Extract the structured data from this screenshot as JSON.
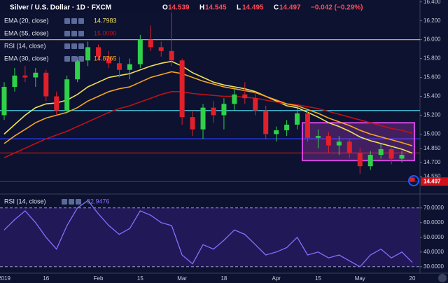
{
  "chart_data": {
    "type": "candlestick",
    "title": "Silver / U.S. Dollar · 1D · FXCM",
    "ohlc_labels": [
      "O",
      "H",
      "L",
      "C"
    ],
    "change_label": "−0.042 (−0.29%)",
    "categories": [
      "2019",
      null,
      null,
      null,
      "16",
      null,
      null,
      null,
      null,
      "Feb",
      null,
      null,
      null,
      "15",
      null,
      null,
      null,
      "Mar",
      null,
      null,
      null,
      "18",
      null,
      null,
      null,
      null,
      "Apr",
      null,
      null,
      null,
      "15",
      null,
      null,
      null,
      "May",
      null,
      null,
      null,
      null,
      "20"
    ],
    "open": [
      15.2,
      15.5,
      15.62,
      15.6,
      15.65,
      15.4,
      15.25,
      15.58,
      15.78,
      15.92,
      15.82,
      15.75,
      15.68,
      15.74,
      16.0,
      15.92,
      15.88,
      15.78,
      15.18,
      15.05,
      15.28,
      15.2,
      15.32,
      15.42,
      15.38,
      15.25,
      15.0,
      15.04,
      15.1,
      15.22,
      14.96,
      14.98,
      14.88,
      14.92,
      14.8,
      14.66,
      14.78,
      14.84,
      14.74,
      14.539
    ],
    "high": [
      15.55,
      15.7,
      15.72,
      15.7,
      15.68,
      15.45,
      15.62,
      15.82,
      15.98,
      15.95,
      15.88,
      15.82,
      15.8,
      16.05,
      16.15,
      15.98,
      16.38,
      15.8,
      15.25,
      15.32,
      15.35,
      15.38,
      15.48,
      15.55,
      15.45,
      15.3,
      15.08,
      15.15,
      15.3,
      15.25,
      15.05,
      15.02,
      14.98,
      14.95,
      14.85,
      14.82,
      14.9,
      14.86,
      14.82,
      14.545
    ],
    "low": [
      15.15,
      15.45,
      15.55,
      15.5,
      15.35,
      15.2,
      15.22,
      15.55,
      15.72,
      15.78,
      15.7,
      15.6,
      15.58,
      15.7,
      15.88,
      15.82,
      15.72,
      15.1,
      14.98,
      14.95,
      15.12,
      15.05,
      15.25,
      15.32,
      15.2,
      14.95,
      14.92,
      14.98,
      15.05,
      14.92,
      14.85,
      14.8,
      14.78,
      14.75,
      14.58,
      14.62,
      14.74,
      14.68,
      14.7,
      14.495
    ],
    "close": [
      15.5,
      15.62,
      15.6,
      15.65,
      15.4,
      15.25,
      15.58,
      15.78,
      15.92,
      15.82,
      15.75,
      15.68,
      15.74,
      16.0,
      15.92,
      15.88,
      15.78,
      15.18,
      15.05,
      15.28,
      15.2,
      15.32,
      15.42,
      15.38,
      15.25,
      15.0,
      15.04,
      15.1,
      15.22,
      14.96,
      14.98,
      14.88,
      14.92,
      14.8,
      14.66,
      14.78,
      14.84,
      14.74,
      14.78,
      14.497
    ],
    "up_color": "#2fd14a",
    "down_color": "#e0202a",
    "series": [
      {
        "name": "EMA (20, close)",
        "color": "#f2e05a",
        "last_label": "14.7983",
        "values": [
          15.0,
          15.1,
          15.2,
          15.28,
          15.32,
          15.33,
          15.36,
          15.42,
          15.5,
          15.55,
          15.6,
          15.62,
          15.64,
          15.68,
          15.72,
          15.75,
          15.77,
          15.72,
          15.65,
          15.6,
          15.55,
          15.52,
          15.5,
          15.48,
          15.45,
          15.4,
          15.35,
          15.3,
          15.28,
          15.23,
          15.18,
          15.12,
          15.08,
          15.03,
          14.97,
          14.93,
          14.9,
          14.87,
          14.84,
          14.7983
        ]
      },
      {
        "name": "EMA (55, close)",
        "color": "#c0101a",
        "last_label": "15.0090",
        "values": [
          14.75,
          14.8,
          14.85,
          14.9,
          14.95,
          14.99,
          15.03,
          15.08,
          15.13,
          15.18,
          15.23,
          15.27,
          15.3,
          15.34,
          15.38,
          15.42,
          15.45,
          15.45,
          15.43,
          15.42,
          15.41,
          15.4,
          15.4,
          15.39,
          15.38,
          15.36,
          15.34,
          15.32,
          15.31,
          15.29,
          15.27,
          15.24,
          15.21,
          15.18,
          15.15,
          15.12,
          15.09,
          15.06,
          15.04,
          15.009
        ]
      },
      {
        "name": "EMA (30, close)",
        "color": "#f5a623",
        "last_label": "14.8765",
        "values": [
          14.9,
          14.98,
          15.05,
          15.12,
          15.17,
          15.2,
          15.23,
          15.28,
          15.35,
          15.4,
          15.45,
          15.48,
          15.5,
          15.55,
          15.6,
          15.63,
          15.66,
          15.64,
          15.6,
          15.56,
          15.53,
          15.5,
          15.48,
          15.46,
          15.44,
          15.4,
          15.36,
          15.32,
          15.3,
          15.26,
          15.22,
          15.17,
          15.13,
          15.09,
          15.04,
          15.0,
          14.97,
          14.94,
          14.91,
          14.8765
        ]
      }
    ],
    "legend_extra": "RSI (14, close)",
    "hlines": [
      {
        "value": 16.0,
        "color": "#e8a23a"
      },
      {
        "value": 15.25,
        "color": "#46d0e8"
      },
      {
        "value": 14.95,
        "color": "#2a40ff"
      },
      {
        "value": 14.8,
        "color": "#b01a1a"
      },
      {
        "value": 14.497,
        "color": "#a01010"
      }
    ],
    "box": {
      "from": 29,
      "to": 39,
      "top": 15.12,
      "bottom": 14.72,
      "color": "#d046e0"
    },
    "ylim": [
      14.38,
      16.42
    ],
    "yticks": [
      {
        "value": 16.4,
        "label": "16.400"
      },
      {
        "value": 16.2,
        "label": "16.200"
      },
      {
        "value": 16.0,
        "label": "16.000"
      },
      {
        "value": 15.8,
        "label": "15.800"
      },
      {
        "value": 15.6,
        "label": "15.600"
      },
      {
        "value": 15.4,
        "label": "15.400"
      },
      {
        "value": 15.2,
        "label": "15.200"
      },
      {
        "value": 15.0,
        "label": "15.000"
      },
      {
        "value": 14.85,
        "label": "14.850"
      },
      {
        "value": 14.7,
        "label": "14.700"
      },
      {
        "value": 14.55,
        "label": "14.550"
      }
    ],
    "last_price_label": "14.497",
    "rsi": {
      "name": "RSI (14, close)",
      "color": "#8a6cff",
      "last_label": "32.9476",
      "values": [
        55,
        62,
        68,
        60,
        50,
        42,
        58,
        70,
        75,
        66,
        58,
        52,
        56,
        68,
        65,
        60,
        58,
        38,
        32,
        45,
        42,
        48,
        55,
        52,
        45,
        38,
        40,
        43,
        50,
        38,
        40,
        36,
        38,
        34,
        30,
        38,
        42,
        36,
        40,
        32.9476
      ],
      "ylim": [
        28,
        78
      ],
      "yticks": [
        {
          "value": 70,
          "label": "70.0000"
        },
        {
          "value": 60,
          "label": "60.0000"
        },
        {
          "value": 50,
          "label": "50.0000"
        },
        {
          "value": 40,
          "label": "40.0000"
        },
        {
          "value": 30,
          "label": "30.0000"
        }
      ],
      "band": [
        30,
        70
      ]
    }
  }
}
